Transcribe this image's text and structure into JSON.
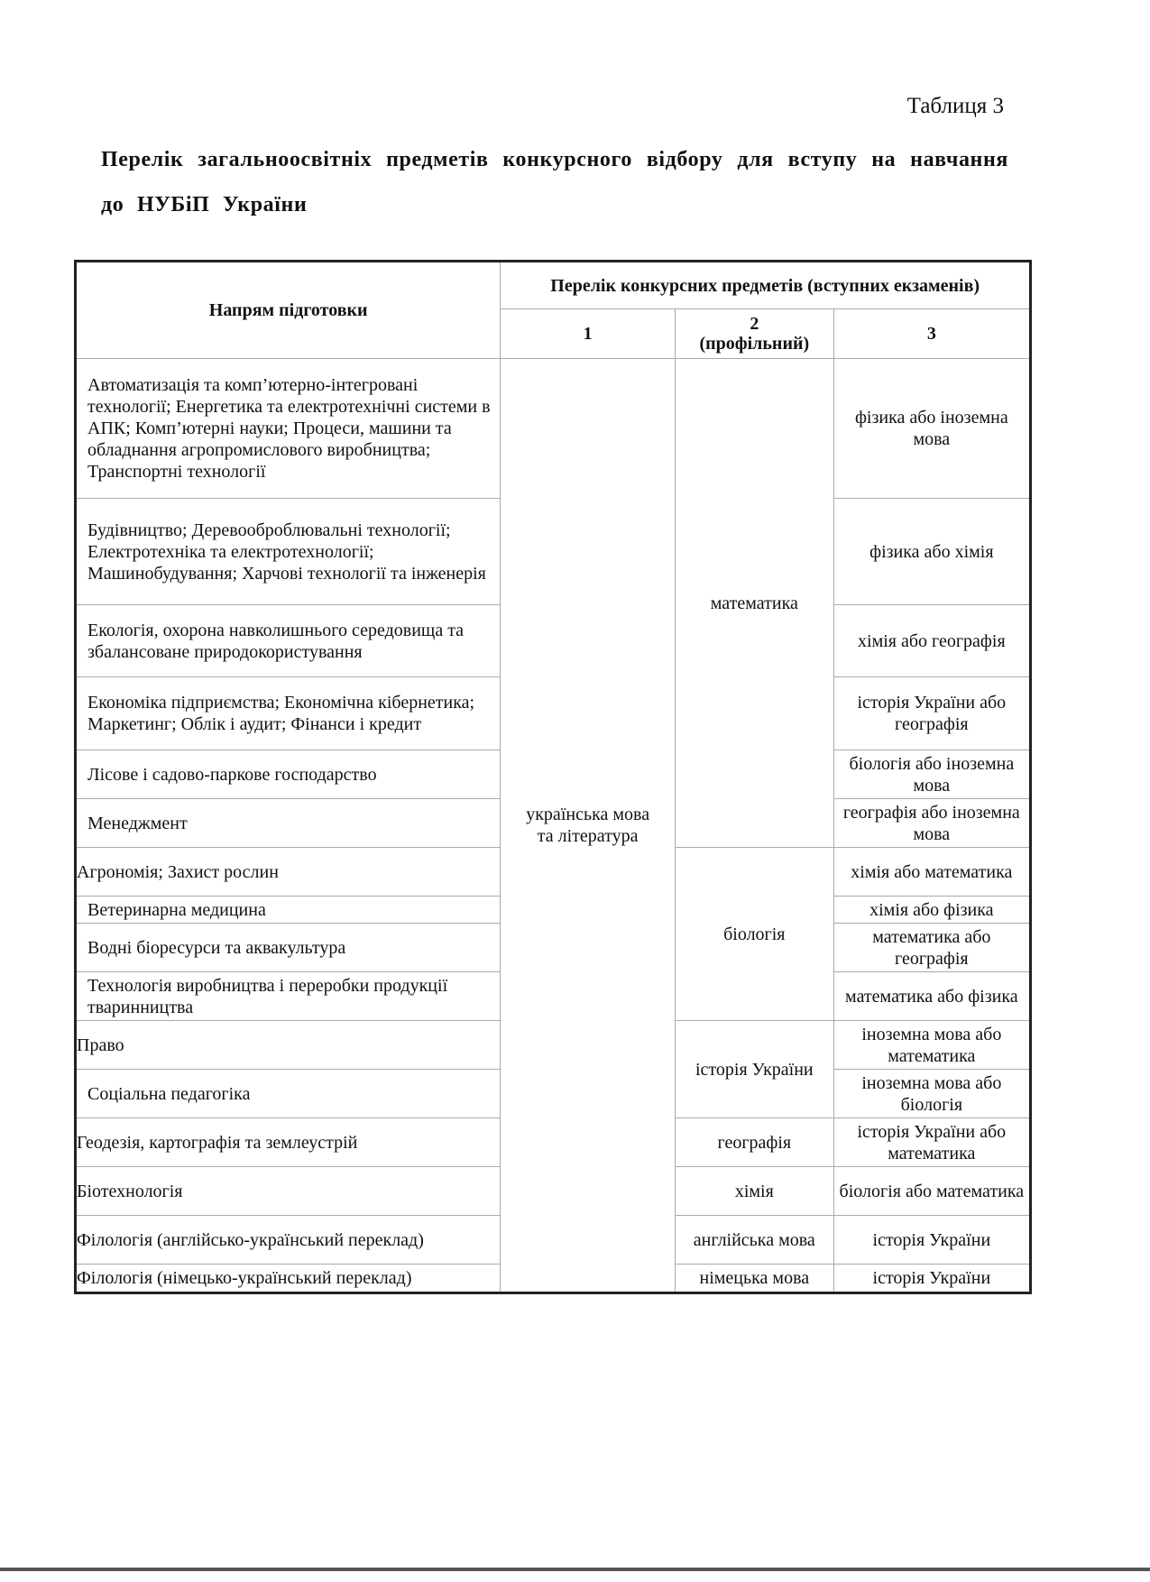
{
  "table_label": "Таблиця 3",
  "heading": "Перелік загальноосвітніх предметів конкурсного відбору для вступу на навчання до НУБіП України",
  "table": {
    "header": {
      "direction": "Напрям підготовки",
      "subjects_group": "Перелік конкурсних предметів (вступних екзаменів)",
      "col1": "1",
      "col2_num": "2",
      "col2_note": "(профільний)",
      "col3": "3"
    },
    "col1_value": "українська мова та література",
    "col2_groups": [
      "математика",
      "біологія",
      "історія України",
      "географія",
      "хімія",
      "англійська мова",
      "німецька мова"
    ],
    "rows": [
      {
        "direction": "Автоматизація та комп’ютерно-інтегровані технології; Енергетика та електротехнічні системи в АПК; Комп’ютерні науки; Процеси, машини та обладнання агропромислового виробництва; Транспортні технології",
        "subject3": "фізика або іноземна мова"
      },
      {
        "direction": "Будівництво; Деревооброблювальні технології; Електротехніка та електротехнології; Машинобудування; Харчові технології та інженерія",
        "subject3": "фізика або хімія"
      },
      {
        "direction": "Екологія, охорона навколишнього середовища та збалансоване природокористування",
        "subject3": "хімія або географія"
      },
      {
        "direction": "Економіка підприємства; Економічна кібернетика; Маркетинг; Облік і аудит; Фінанси і кредит",
        "subject3": "історія України або географія"
      },
      {
        "direction": "Лісове і садово-паркове господарство",
        "subject3": "біологія або іноземна мова"
      },
      {
        "direction": "Менеджмент",
        "subject3": "географія або іноземна мова"
      },
      {
        "direction": "Агрономія; Захист рослин",
        "subject3": "хімія або математика"
      },
      {
        "direction": "Ветеринарна медицина",
        "subject3": "хімія або фізика"
      },
      {
        "direction": "Водні біоресурси та аквакультура",
        "subject3": "математика або географія"
      },
      {
        "direction": "Технологія виробництва і переробки продукції тваринництва",
        "subject3": "математика або фізика"
      },
      {
        "direction": "Право",
        "subject3": "іноземна мова або математика"
      },
      {
        "direction": "Соціальна педагогіка",
        "subject3": "іноземна мова або біологія"
      },
      {
        "direction": "Геодезія, картографія та землеустрій",
        "subject3": "історія України або математика"
      },
      {
        "direction": "Біотехнологія",
        "subject3": "біологія або математика"
      },
      {
        "direction": "Філологія (англійсько-український переклад)",
        "subject3": "історія України"
      },
      {
        "direction": "Філологія (німецько-український переклад)",
        "subject3": "історія України"
      }
    ]
  }
}
